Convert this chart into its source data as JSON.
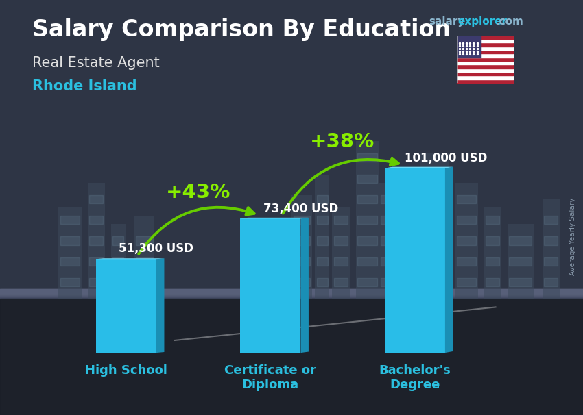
{
  "title_main": "Salary Comparison By Education",
  "subtitle1": "Real Estate Agent",
  "subtitle2": "Rhode Island",
  "watermark_salary": "salary",
  "watermark_explorer": "explorer",
  "watermark_com": ".com",
  "ylabel_rotated": "Average Yearly Salary",
  "categories": [
    "High School",
    "Certificate or\nDiploma",
    "Bachelor's\nDegree"
  ],
  "values": [
    51300,
    73400,
    101000
  ],
  "value_labels": [
    "51,300 USD",
    "73,400 USD",
    "101,000 USD"
  ],
  "pct_labels": [
    "+43%",
    "+38%"
  ],
  "bar_face_color": "#29bde8",
  "bar_side_color": "#1a8fb5",
  "bar_top_color": "#6dd8f5",
  "bg_color": "#2e3545",
  "title_color": "#ffffff",
  "subtitle1_color": "#e0e0e0",
  "subtitle2_color": "#2bbfdf",
  "label_color": "#ffffff",
  "pct_color": "#88ee00",
  "arrow_color": "#66cc00",
  "cat_label_color": "#2bbfdf",
  "title_fontsize": 24,
  "subtitle1_fontsize": 15,
  "subtitle2_fontsize": 15,
  "value_label_fontsize": 12,
  "pct_fontsize": 21,
  "cat_label_fontsize": 13,
  "bar_width": 0.42,
  "ylim_max": 125000,
  "watermark_color_salary": "#8ab4cc",
  "watermark_color_explorer": "#2bbfdf",
  "watermark_com_color": "#8ab4cc"
}
